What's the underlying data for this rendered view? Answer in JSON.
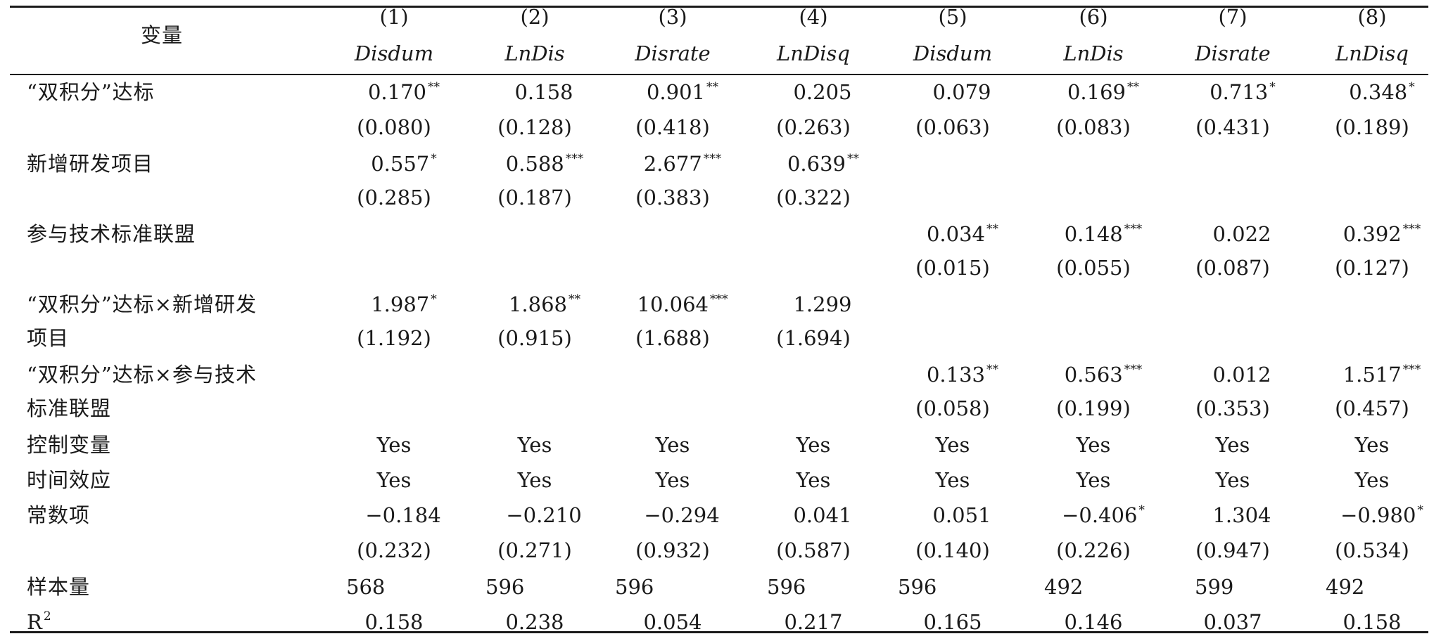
{
  "table": {
    "header": {
      "variable_label": "变量",
      "col_numbers": [
        "(1)",
        "(2)",
        "(3)",
        "(4)",
        "(5)",
        "(6)",
        "(7)",
        "(8)"
      ],
      "col_names": [
        "Disdum",
        "LnDis",
        "Disrate",
        "LnDisq",
        "Disdum",
        "LnDis",
        "Disrate",
        "LnDisq"
      ]
    },
    "rows": {
      "dual_credit": {
        "label": "“双积分”达标",
        "coef": [
          {
            "v": "0.170",
            "s": "**"
          },
          {
            "v": "0.158",
            "s": ""
          },
          {
            "v": "0.901",
            "s": "**"
          },
          {
            "v": "0.205",
            "s": ""
          },
          {
            "v": "0.079",
            "s": ""
          },
          {
            "v": "0.169",
            "s": "**"
          },
          {
            "v": "0.713",
            "s": "*"
          },
          {
            "v": "0.348",
            "s": "*"
          }
        ],
        "se": [
          "(0.080)",
          "(0.128)",
          "(0.418)",
          "(0.263)",
          "(0.063)",
          "(0.083)",
          "(0.431)",
          "(0.189)"
        ]
      },
      "new_rd": {
        "label": "新增研发项目",
        "coef": [
          {
            "v": "0.557",
            "s": "*"
          },
          {
            "v": "0.588",
            "s": "***"
          },
          {
            "v": "2.677",
            "s": "***"
          },
          {
            "v": "0.639",
            "s": "**"
          }
        ],
        "se": [
          "(0.285)",
          "(0.187)",
          "(0.383)",
          "(0.322)"
        ]
      },
      "alliance": {
        "label": "参与技术标准联盟",
        "coef": [
          {
            "v": "0.034",
            "s": "**"
          },
          {
            "v": "0.148",
            "s": "***"
          },
          {
            "v": "0.022",
            "s": ""
          },
          {
            "v": "0.392",
            "s": "***"
          }
        ],
        "se": [
          "(0.015)",
          "(0.055)",
          "(0.087)",
          "(0.127)"
        ]
      },
      "inter_rd": {
        "label_line1": "“双积分”达标×新增研发",
        "label_line2": "项目",
        "coef": [
          {
            "v": "1.987",
            "s": "*"
          },
          {
            "v": "1.868",
            "s": "**"
          },
          {
            "v": "10.064",
            "s": "***"
          },
          {
            "v": "1.299",
            "s": ""
          }
        ],
        "se": [
          "(1.192)",
          "(0.915)",
          "(1.688)",
          "(1.694)"
        ]
      },
      "inter_alliance": {
        "label_line1": "“双积分”达标×参与技术",
        "label_line2": "标准联盟",
        "coef": [
          {
            "v": "0.133",
            "s": "**"
          },
          {
            "v": "0.563",
            "s": "***"
          },
          {
            "v": "0.012",
            "s": ""
          },
          {
            "v": "1.517",
            "s": "***"
          }
        ],
        "se": [
          "(0.058)",
          "(0.199)",
          "(0.353)",
          "(0.457)"
        ]
      },
      "controls": {
        "label": "控制变量",
        "values": [
          "Yes",
          "Yes",
          "Yes",
          "Yes",
          "Yes",
          "Yes",
          "Yes",
          "Yes"
        ]
      },
      "time_effect": {
        "label": "时间效应",
        "values": [
          "Yes",
          "Yes",
          "Yes",
          "Yes",
          "Yes",
          "Yes",
          "Yes",
          "Yes"
        ]
      },
      "constant": {
        "label": "常数项",
        "coef": [
          {
            "v": "−0.184",
            "s": ""
          },
          {
            "v": "−0.210",
            "s": ""
          },
          {
            "v": "−0.294",
            "s": ""
          },
          {
            "v": "0.041",
            "s": ""
          },
          {
            "v": "0.051",
            "s": ""
          },
          {
            "v": "−0.406",
            "s": "*"
          },
          {
            "v": "1.304",
            "s": ""
          },
          {
            "v": "−0.980",
            "s": "*"
          }
        ],
        "se": [
          "(0.232)",
          "(0.271)",
          "(0.932)",
          "(0.587)",
          "(0.140)",
          "(0.226)",
          "(0.947)",
          "(0.534)"
        ]
      },
      "sample": {
        "label": "样本量",
        "values": [
          "568",
          "596",
          "596",
          "596",
          "596",
          "492",
          "599",
          "492"
        ]
      },
      "r2": {
        "label": "R",
        "label_sup": "2",
        "values": [
          "0.158",
          "0.238",
          "0.054",
          "0.217",
          "0.165",
          "0.146",
          "0.037",
          "0.158"
        ]
      }
    }
  }
}
